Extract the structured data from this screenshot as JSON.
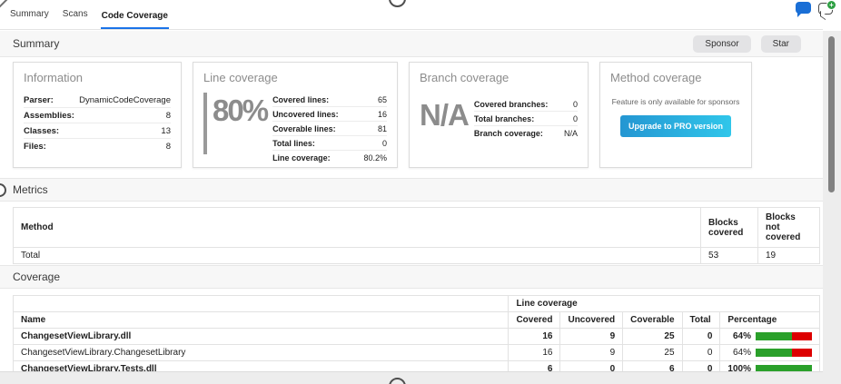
{
  "tabs": {
    "items": [
      {
        "label": "Summary"
      },
      {
        "label": "Scans"
      },
      {
        "label": "Code Coverage"
      }
    ],
    "active": "Code Coverage"
  },
  "header": {
    "icons": {
      "chat": "chat-bubble-icon",
      "chat_add": "chat-bubble-add-icon",
      "badge_glyph": "+"
    }
  },
  "summary": {
    "title": "Summary",
    "buttons": [
      {
        "label": "Sponsor"
      },
      {
        "label": "Star"
      }
    ]
  },
  "cards": {
    "information": {
      "title": "Information",
      "rows": [
        {
          "label": "Parser:",
          "value": "DynamicCodeCoverage"
        },
        {
          "label": "Assemblies:",
          "value": "8"
        },
        {
          "label": "Classes:",
          "value": "13"
        },
        {
          "label": "Files:",
          "value": "8"
        }
      ]
    },
    "line_coverage": {
      "title": "Line coverage",
      "big_value": "80%",
      "rows": [
        {
          "label": "Covered lines:",
          "value": "65"
        },
        {
          "label": "Uncovered lines:",
          "value": "16"
        },
        {
          "label": "Coverable lines:",
          "value": "81"
        },
        {
          "label": "Total lines:",
          "value": "0"
        },
        {
          "label": "Line coverage:",
          "value": "80.2%"
        }
      ]
    },
    "branch_coverage": {
      "title": "Branch coverage",
      "big_value": "N/A",
      "rows": [
        {
          "label": "Covered branches:",
          "value": "0"
        },
        {
          "label": "Total branches:",
          "value": "0"
        },
        {
          "label": "Branch coverage:",
          "value": "N/A"
        }
      ]
    },
    "method_coverage": {
      "title": "Method coverage",
      "note": "Feature is only available for sponsors",
      "button_label": "Upgrade to PRO version"
    }
  },
  "metrics": {
    "title": "Metrics",
    "headers": [
      "Method",
      "Blocks covered",
      "Blocks not covered"
    ],
    "rows": [
      {
        "method": "Total",
        "blocks_covered": "53",
        "blocks_not_covered": "19"
      }
    ]
  },
  "coverage": {
    "title": "Coverage",
    "group_header": "Line coverage",
    "headers": [
      "Name",
      "Covered",
      "Uncovered",
      "Coverable",
      "Total",
      "Percentage"
    ],
    "rows": [
      {
        "name": "ChangesetViewLibrary.dll",
        "covered": "16",
        "uncovered": "9",
        "coverable": "25",
        "total": "0",
        "percentage": "64%",
        "pct": 64
      },
      {
        "name": "ChangesetViewLibrary.ChangesetLibrary",
        "covered": "16",
        "uncovered": "9",
        "coverable": "25",
        "total": "0",
        "percentage": "64%",
        "pct": 64
      },
      {
        "name": "ChangesetViewLibrary.Tests.dll",
        "covered": "6",
        "uncovered": "0",
        "coverable": "6",
        "total": "0",
        "percentage": "100%",
        "pct": 100
      }
    ]
  },
  "colors": {
    "accent_blue": "#1a73e8",
    "link_blue": "#4a9ee0",
    "bar_green": "#2aa02a",
    "bar_red": "#dd0000",
    "pro_button_gradient_start": "#2496d2",
    "pro_button_gradient_end": "#30c6ea",
    "chat_bubble_blue": "#1a6fd6",
    "badge_green": "#2ea043"
  }
}
